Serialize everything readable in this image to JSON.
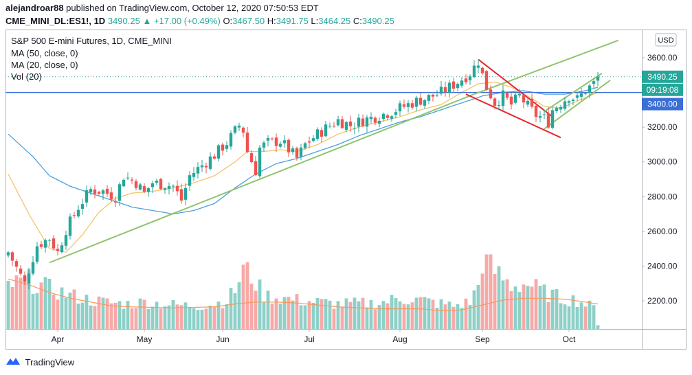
{
  "header": {
    "author": "alejandroar88",
    "published_text": "published on TradingView.com, October 12, 2020 07:50:53 EDT",
    "symbol": "CME_MINI_DL:ES1!, 1D",
    "price": "3490.25",
    "change": "+17.00 (+0.49%)",
    "open_label": "O:",
    "open": "3467.50",
    "high_label": "H:",
    "high": "3491.75",
    "low_label": "L:",
    "low": "3464.25",
    "close_label": "C:",
    "close": "3490.25"
  },
  "legend": {
    "title": "S&P 500 E-mini Futures, 1D, CME_MINI",
    "ma50": "MA (50, close, 0)",
    "ma20": "MA (20, close, 0)",
    "vol": "Vol (20)"
  },
  "price_axis": {
    "currency": "USD",
    "last_price": "3490.25",
    "countdown": "09:19:08",
    "level_price": "3400.00"
  },
  "footer": {
    "brand": "TradingView"
  },
  "colors": {
    "up": "#26a69a",
    "down": "#ef5350",
    "vol_up": "#8ed0c8",
    "vol_down": "#f7a9a7",
    "ma50": "#4c9fde",
    "ma20": "#f6c36b",
    "volma": "#f39a5c",
    "level": "#3a6fd8",
    "trend_green": "#8fc46c",
    "wedge_red": "#e5262c",
    "last_label": "#26a69a",
    "level_label": "#3a6fd8"
  },
  "chart_data": {
    "type": "candlestick",
    "title": "S&P 500 E-mini Futures, 1D, CME_MINI",
    "xlabel": "",
    "ylabel": "",
    "ylim": [
      2040,
      3690
    ],
    "y_ticks": [
      2200,
      2400,
      2600,
      2800,
      3000,
      3200,
      3400,
      3600
    ],
    "x_ticks": [
      {
        "label": "Apr",
        "index": 12
      },
      {
        "label": "May",
        "index": 33
      },
      {
        "label": "Jun",
        "index": 52
      },
      {
        "label": "Jul",
        "index": 73
      },
      {
        "label": "Aug",
        "index": 95
      },
      {
        "label": "Sep",
        "index": 115
      },
      {
        "label": "Oct",
        "index": 136
      }
    ],
    "start_date": "2020-03-18",
    "anchors": [
      [
        0,
        2480
      ],
      [
        4,
        2300
      ],
      [
        5,
        2380
      ],
      [
        7,
        2520
      ],
      [
        10,
        2560
      ],
      [
        12,
        2480
      ],
      [
        14,
        2610
      ],
      [
        17,
        2740
      ],
      [
        20,
        2840
      ],
      [
        23,
        2830
      ],
      [
        26,
        2800
      ],
      [
        28,
        2920
      ],
      [
        31,
        2880
      ],
      [
        33,
        2820
      ],
      [
        35,
        2880
      ],
      [
        38,
        2870
      ],
      [
        40,
        2860
      ],
      [
        42,
        2780
      ],
      [
        44,
        2920
      ],
      [
        47,
        2980
      ],
      [
        50,
        3040
      ],
      [
        53,
        3110
      ],
      [
        56,
        3210
      ],
      [
        57,
        3180
      ],
      [
        58,
        3060
      ],
      [
        60,
        2950
      ],
      [
        61,
        3080
      ],
      [
        63,
        3110
      ],
      [
        66,
        3120
      ],
      [
        68,
        3070
      ],
      [
        70,
        3020
      ],
      [
        72,
        3100
      ],
      [
        75,
        3160
      ],
      [
        78,
        3210
      ],
      [
        80,
        3240
      ],
      [
        83,
        3210
      ],
      [
        86,
        3240
      ],
      [
        89,
        3260
      ],
      [
        93,
        3290
      ],
      [
        96,
        3320
      ],
      [
        99,
        3350
      ],
      [
        102,
        3370
      ],
      [
        105,
        3400
      ],
      [
        109,
        3460
      ],
      [
        112,
        3510
      ],
      [
        114,
        3580
      ],
      [
        115,
        3500
      ],
      [
        116,
        3430
      ],
      [
        118,
        3340
      ],
      [
        120,
        3380
      ],
      [
        122,
        3330
      ],
      [
        124,
        3380
      ],
      [
        126,
        3320
      ],
      [
        128,
        3270
      ],
      [
        130,
        3250
      ],
      [
        131,
        3230
      ],
      [
        132,
        3300
      ],
      [
        134,
        3340
      ],
      [
        136,
        3380
      ],
      [
        138,
        3360
      ],
      [
        140,
        3410
      ],
      [
        142,
        3450
      ],
      [
        143,
        3490.25
      ]
    ],
    "ma50_anchors": [
      [
        0,
        3160
      ],
      [
        6,
        3030
      ],
      [
        10,
        2920
      ],
      [
        15,
        2860
      ],
      [
        20,
        2820
      ],
      [
        25,
        2780
      ],
      [
        30,
        2740
      ],
      [
        35,
        2720
      ],
      [
        40,
        2700
      ],
      [
        45,
        2720
      ],
      [
        50,
        2760
      ],
      [
        55,
        2850
      ],
      [
        60,
        2930
      ],
      [
        65,
        2990
      ],
      [
        70,
        3020
      ],
      [
        75,
        3060
      ],
      [
        80,
        3100
      ],
      [
        85,
        3150
      ],
      [
        90,
        3190
      ],
      [
        95,
        3230
      ],
      [
        100,
        3260
      ],
      [
        105,
        3300
      ],
      [
        110,
        3340
      ],
      [
        115,
        3380
      ],
      [
        120,
        3400
      ],
      [
        125,
        3410
      ],
      [
        130,
        3390
      ],
      [
        135,
        3390
      ],
      [
        140,
        3410
      ],
      [
        143,
        3430
      ]
    ],
    "ma20_anchors": [
      [
        0,
        2930
      ],
      [
        5,
        2700
      ],
      [
        10,
        2500
      ],
      [
        14,
        2480
      ],
      [
        18,
        2580
      ],
      [
        22,
        2710
      ],
      [
        26,
        2790
      ],
      [
        30,
        2820
      ],
      [
        35,
        2830
      ],
      [
        40,
        2850
      ],
      [
        45,
        2880
      ],
      [
        50,
        2920
      ],
      [
        55,
        3000
      ],
      [
        58,
        3060
      ],
      [
        62,
        3060
      ],
      [
        66,
        3070
      ],
      [
        70,
        3060
      ],
      [
        75,
        3100
      ],
      [
        80,
        3160
      ],
      [
        85,
        3200
      ],
      [
        90,
        3230
      ],
      [
        95,
        3260
      ],
      [
        100,
        3300
      ],
      [
        105,
        3330
      ],
      [
        110,
        3400
      ],
      [
        114,
        3450
      ],
      [
        118,
        3460
      ],
      [
        122,
        3430
      ],
      [
        126,
        3380
      ],
      [
        130,
        3320
      ],
      [
        134,
        3310
      ],
      [
        138,
        3350
      ],
      [
        143,
        3400
      ]
    ],
    "volume_anchors": [
      [
        0,
        0.45
      ],
      [
        5,
        0.5
      ],
      [
        10,
        0.42
      ],
      [
        15,
        0.35
      ],
      [
        20,
        0.3
      ],
      [
        25,
        0.27
      ],
      [
        30,
        0.26
      ],
      [
        33,
        0.28
      ],
      [
        40,
        0.25
      ],
      [
        45,
        0.24
      ],
      [
        50,
        0.26
      ],
      [
        53,
        0.3
      ],
      [
        55,
        0.4
      ],
      [
        57,
        0.62
      ],
      [
        59,
        0.55
      ],
      [
        62,
        0.35
      ],
      [
        70,
        0.3
      ],
      [
        75,
        0.28
      ],
      [
        80,
        0.26
      ],
      [
        90,
        0.27
      ],
      [
        95,
        0.32
      ],
      [
        100,
        0.3
      ],
      [
        108,
        0.24
      ],
      [
        112,
        0.28
      ],
      [
        114,
        0.45
      ],
      [
        115,
        0.72
      ],
      [
        118,
        0.6
      ],
      [
        122,
        0.45
      ],
      [
        126,
        0.47
      ],
      [
        130,
        0.38
      ],
      [
        134,
        0.32
      ],
      [
        138,
        0.3
      ],
      [
        140,
        0.26
      ],
      [
        142,
        0.22
      ],
      [
        143,
        0.05
      ]
    ],
    "volma_anchors": [
      [
        0,
        0.52
      ],
      [
        5,
        0.46
      ],
      [
        10,
        0.38
      ],
      [
        15,
        0.32
      ],
      [
        20,
        0.28
      ],
      [
        25,
        0.24
      ],
      [
        30,
        0.23
      ],
      [
        40,
        0.22
      ],
      [
        50,
        0.23
      ],
      [
        55,
        0.26
      ],
      [
        60,
        0.28
      ],
      [
        65,
        0.28
      ],
      [
        70,
        0.27
      ],
      [
        75,
        0.25
      ],
      [
        80,
        0.23
      ],
      [
        90,
        0.21
      ],
      [
        100,
        0.21
      ],
      [
        105,
        0.19
      ],
      [
        110,
        0.2
      ],
      [
        115,
        0.25
      ],
      [
        120,
        0.3
      ],
      [
        125,
        0.32
      ],
      [
        130,
        0.32
      ],
      [
        135,
        0.31
      ],
      [
        140,
        0.28
      ],
      [
        143,
        0.26
      ]
    ],
    "horizontal_line": 3400,
    "trendlines": [
      {
        "name": "rising-channel-lower",
        "color": "green",
        "from": [
          10,
          2420
        ],
        "to": [
          113,
          3390
        ]
      },
      {
        "name": "rising-channel-upper",
        "color": "green",
        "from": [
          113,
          3390
        ],
        "to": [
          148,
          3700
        ]
      },
      {
        "name": "wedge-upper",
        "color": "red",
        "from": [
          114,
          3590
        ],
        "to": [
          132,
          3260
        ]
      },
      {
        "name": "wedge-lower",
        "color": "red",
        "from": [
          111,
          3390
        ],
        "to": [
          134,
          3140
        ]
      },
      {
        "name": "flag-upper",
        "color": "green",
        "from": [
          130,
          3290
        ],
        "to": [
          144,
          3510
        ]
      },
      {
        "name": "flag-lower",
        "color": "green",
        "from": [
          130,
          3190
        ],
        "to": [
          146,
          3470
        ]
      }
    ]
  }
}
